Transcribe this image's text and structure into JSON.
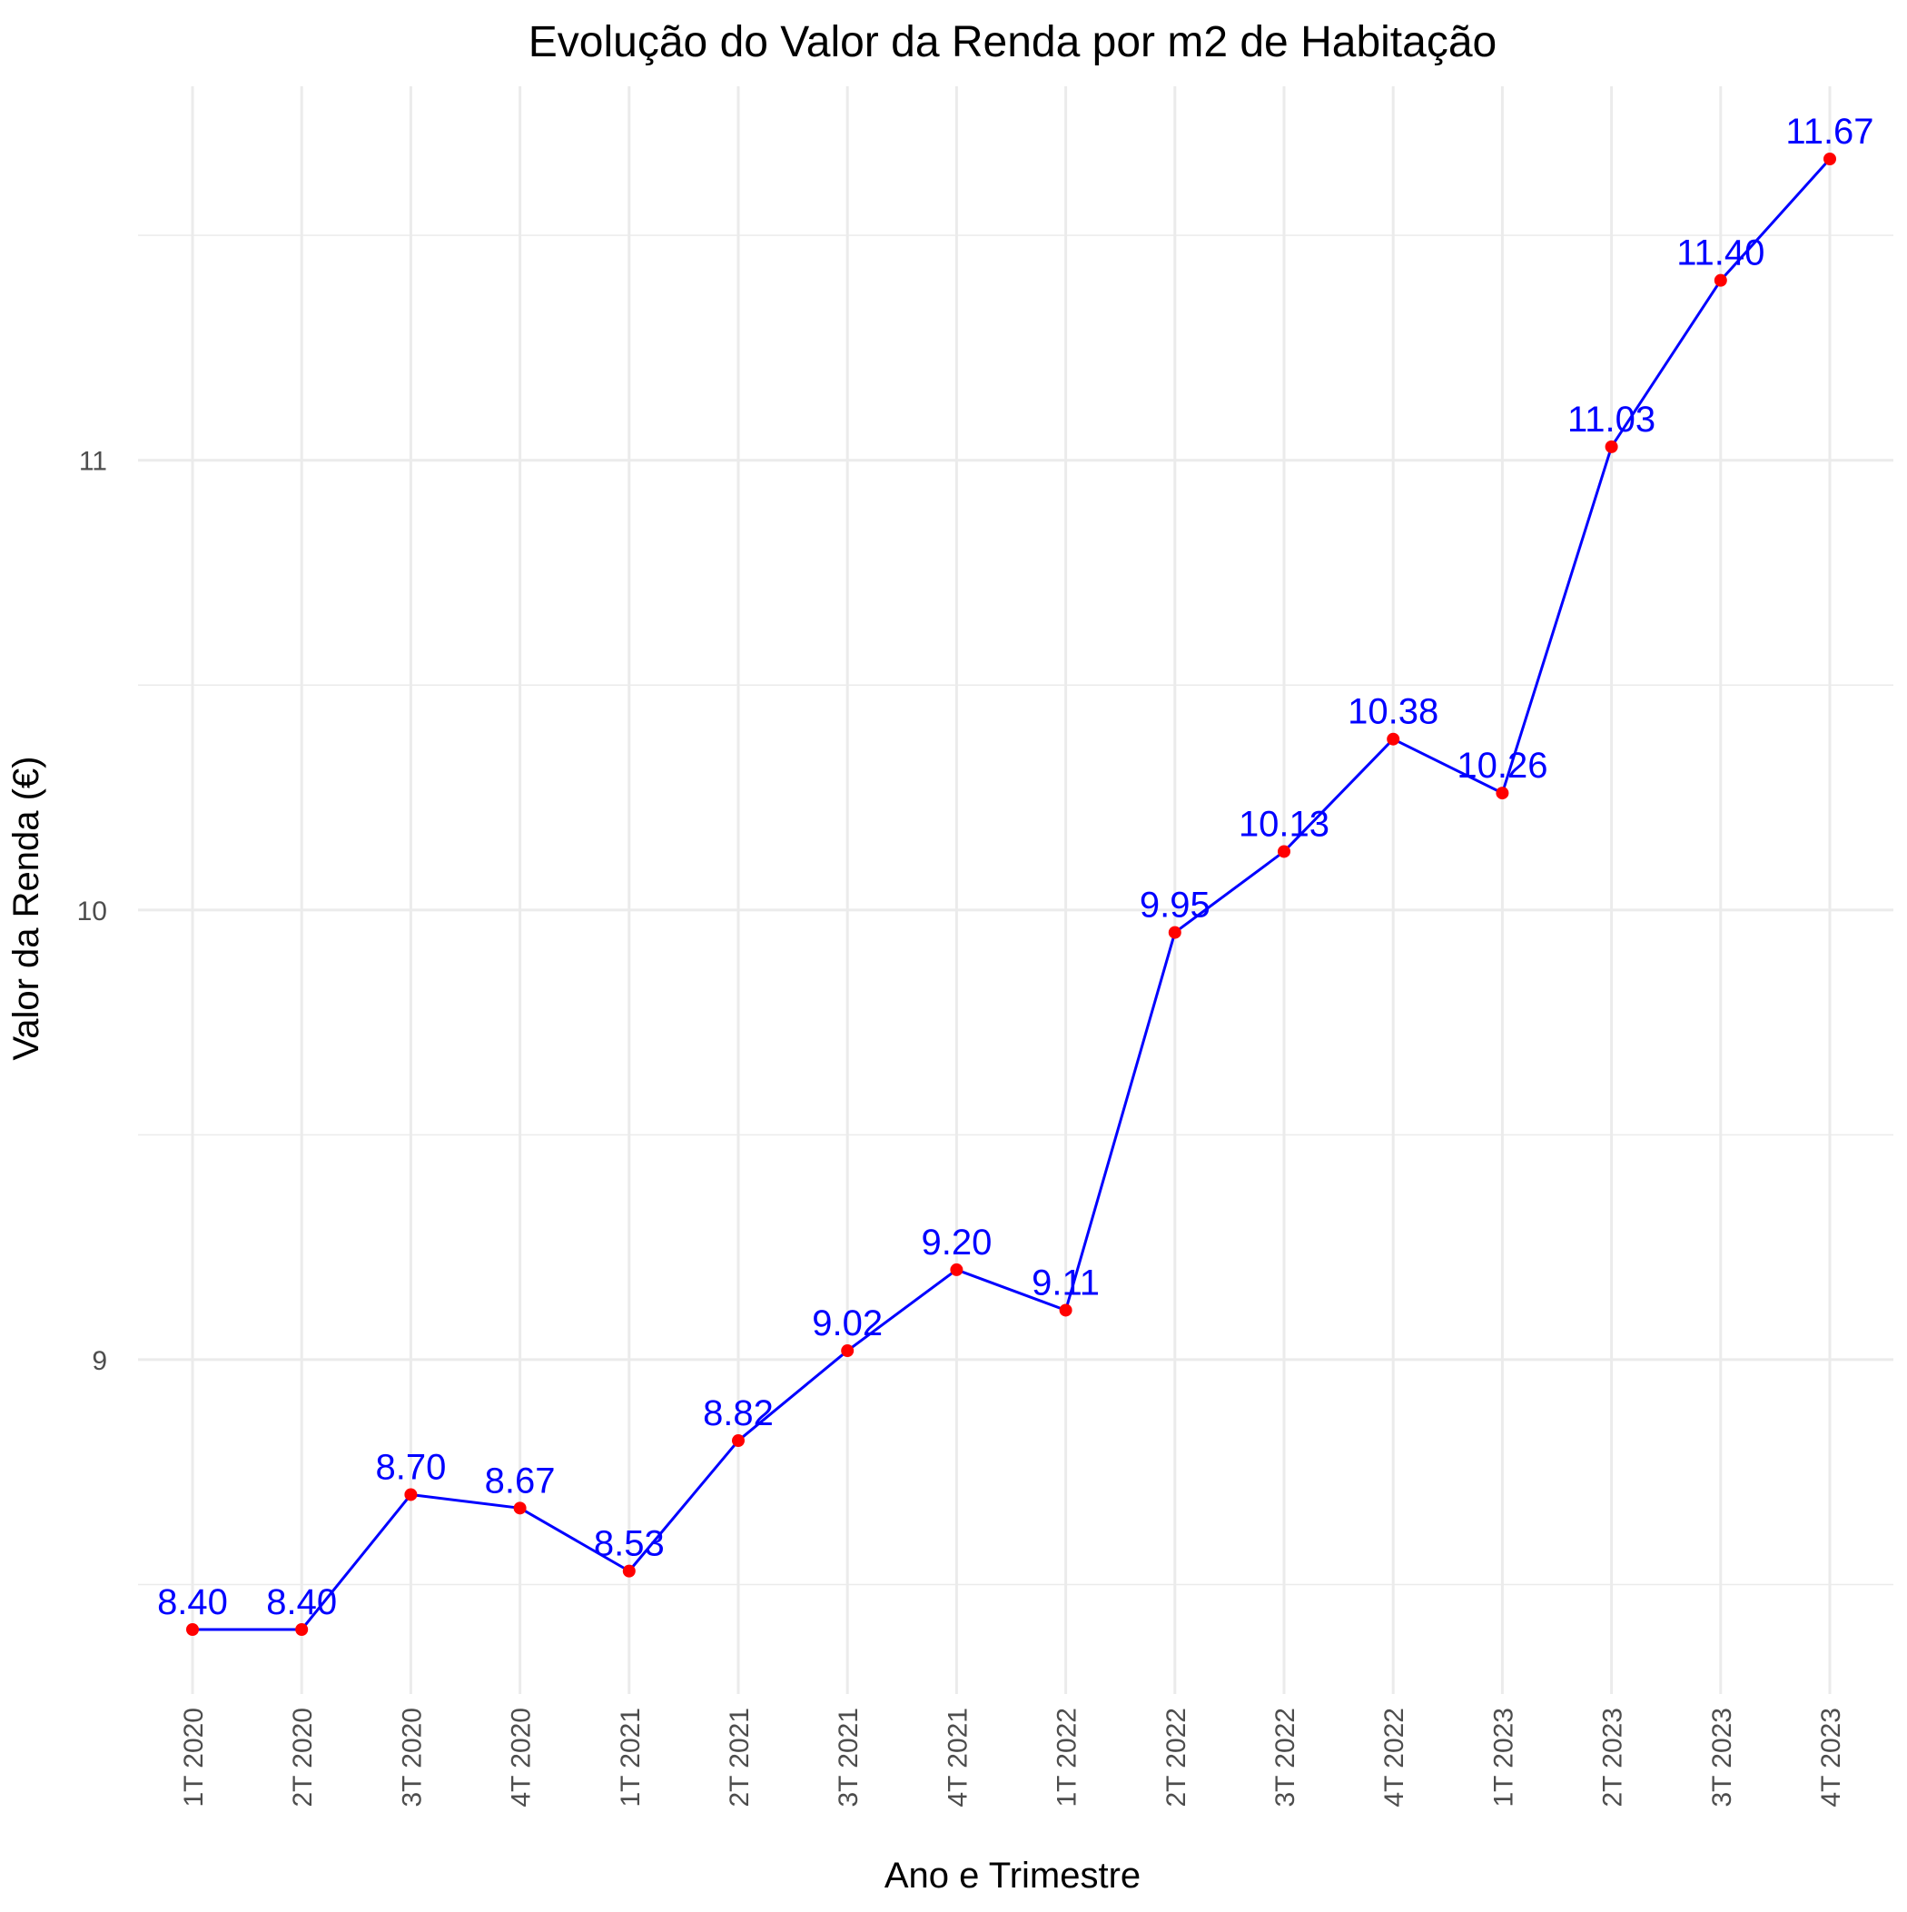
{
  "chart_data": {
    "type": "line",
    "title": "Evolução do Valor da Renda por m2 de Habitação",
    "xlabel": "Ano e Trimestre",
    "ylabel": "Valor da Renda (€)",
    "categories": [
      "1T 2020",
      "2T 2020",
      "3T 2020",
      "4T 2020",
      "1T 2021",
      "2T 2021",
      "3T 2021",
      "4T 2021",
      "1T 2022",
      "2T 2022",
      "3T 2022",
      "4T 2022",
      "1T 2023",
      "2T 2023",
      "3T 2023",
      "4T 2023"
    ],
    "series": [
      {
        "values": [
          8.4,
          8.4,
          8.7,
          8.67,
          8.53,
          8.82,
          9.02,
          9.2,
          9.11,
          9.95,
          10.13,
          10.38,
          10.26,
          11.03,
          11.4,
          11.67
        ],
        "line_color": "#0000ff",
        "point_color": "#ff0000",
        "label_color": "#0000ff"
      }
    ],
    "data_labels": [
      "8.40",
      "8.40",
      "8.70",
      "8.67",
      "8.53",
      "8.82",
      "9.02",
      "9.20",
      "9.11",
      "9.95",
      "10.13",
      "10.38",
      "10.26",
      "11.03",
      "11.40",
      "11.67"
    ],
    "y_ticks": [
      9,
      10,
      11
    ],
    "y_tick_labels": [
      "9",
      "10",
      "11"
    ],
    "y_minor_ticks": [
      8.5,
      9.5,
      10.5,
      11.5
    ],
    "ylim": [
      8.2,
      11.9
    ],
    "grid": true,
    "legend": "none",
    "theme": "minimal"
  }
}
